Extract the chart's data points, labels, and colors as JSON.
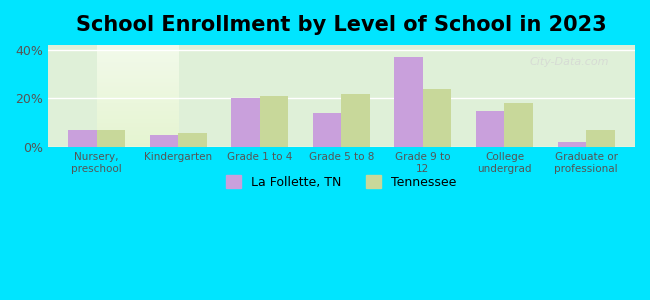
{
  "title": "School Enrollment by Level of School in 2023",
  "categories": [
    "Nursery,\npreschool",
    "Kindergarten",
    "Grade 1 to 4",
    "Grade 5 to 8",
    "Grade 9 to\n12",
    "College\nundergrad",
    "Graduate or\nprofessional"
  ],
  "la_follette": [
    7,
    5,
    20,
    14,
    37,
    15,
    2
  ],
  "tennessee": [
    7,
    6,
    21,
    22,
    24,
    18,
    7
  ],
  "la_follette_color": "#c9a0dc",
  "tennessee_color": "#c8d89a",
  "background_outer": "#00e5ff",
  "background_inner_top": "#e8f5e9",
  "background_inner_bottom": "#f5f5e8",
  "ylim": [
    0,
    42
  ],
  "yticks": [
    0,
    20,
    40
  ],
  "ytick_labels": [
    "0%",
    "20%",
    "40%"
  ],
  "legend_labels": [
    "La Follette, TN",
    "Tennessee"
  ],
  "watermark": "City-Data.com",
  "title_fontsize": 15,
  "bar_width": 0.35
}
